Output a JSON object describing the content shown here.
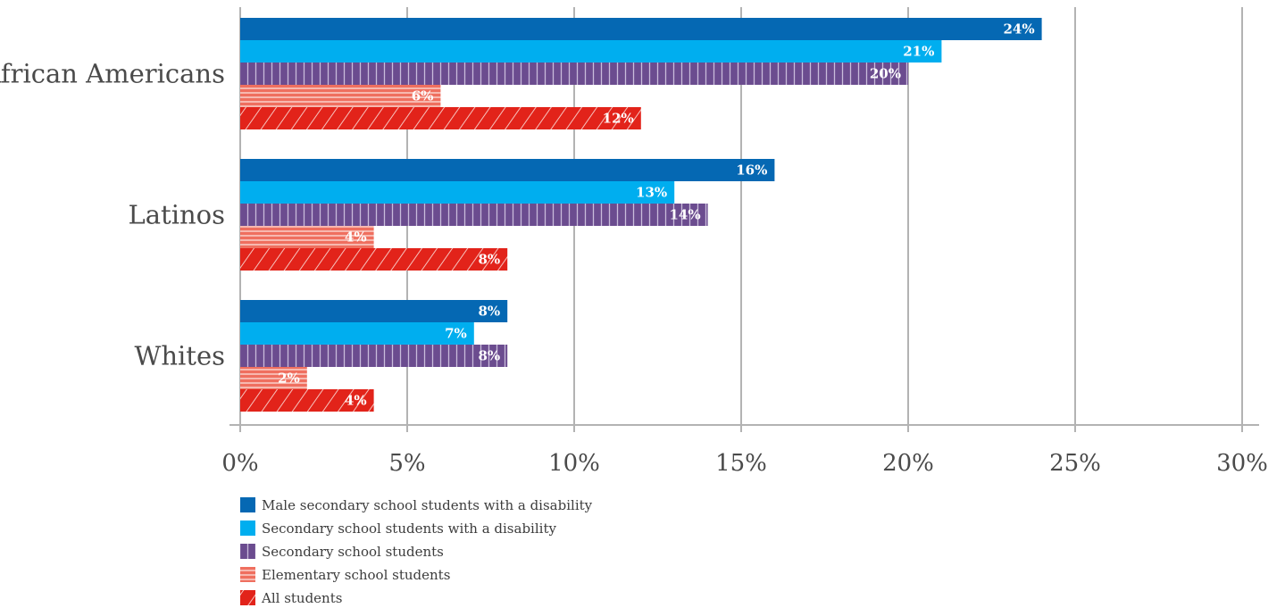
{
  "chart_data": {
    "type": "bar",
    "orientation": "horizontal",
    "categories": [
      "African Americans",
      "Latinos",
      "Whites"
    ],
    "series": [
      {
        "name": "Male secondary school students with a disability",
        "values": [
          24,
          16,
          8
        ],
        "color": "#0568b3",
        "pattern": "solid"
      },
      {
        "name": "Secondary school students with a disability",
        "values": [
          21,
          13,
          7
        ],
        "color": "#00aeef",
        "pattern": "solid"
      },
      {
        "name": "Secondary school students",
        "values": [
          20,
          14,
          8
        ],
        "color": "#6b4c8f",
        "pattern": "vertical-stripes"
      },
      {
        "name": "Elementary school students",
        "values": [
          6,
          4,
          2
        ],
        "color": "#ef6f5f",
        "pattern": "horizontal-stripes"
      },
      {
        "name": "All students",
        "values": [
          12,
          8,
          4
        ],
        "color": "#e2231a",
        "pattern": "diagonal-stripes"
      }
    ],
    "xlim": [
      0,
      30
    ],
    "xticks": [
      "0%",
      "5%",
      "10%",
      "15%",
      "20%",
      "25%",
      "30%"
    ],
    "value_suffix": "%",
    "grid": true,
    "legend_position": "bottom-left"
  }
}
